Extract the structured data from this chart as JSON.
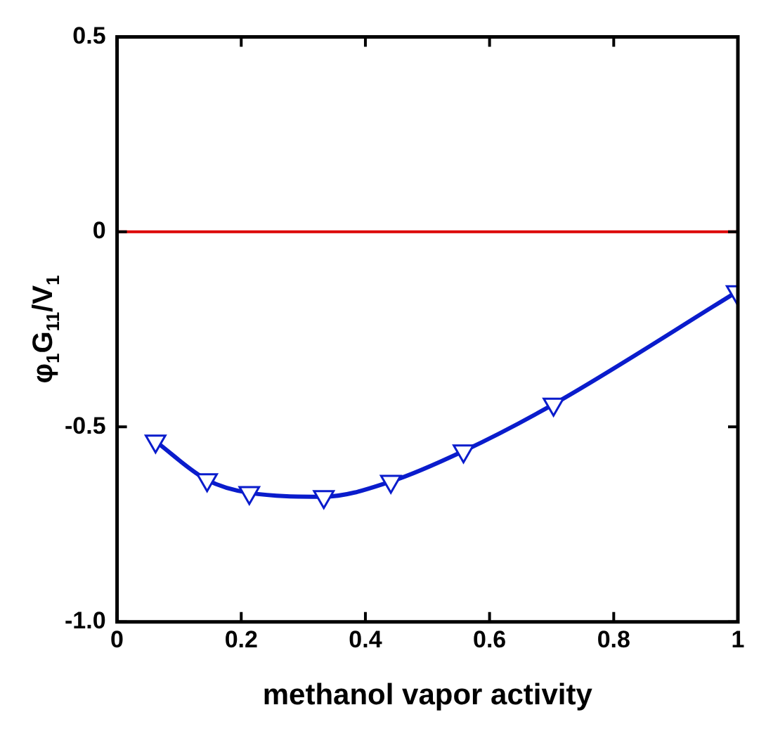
{
  "chart_data": {
    "type": "line",
    "xlabel": "methanol vapor activity",
    "ylabel": "φ$_{1}$G$_{11}$/V$_{1}$",
    "x": [
      0.062,
      0.145,
      0.213,
      0.333,
      0.441,
      0.558,
      0.703,
      0.998
    ],
    "series": [
      {
        "color": "#0a1ccc",
        "values": [
          -0.537,
          -0.636,
          -0.669,
          -0.679,
          -0.64,
          -0.562,
          -0.442,
          -0.154
        ]
      }
    ],
    "xlim": [
      0,
      1
    ],
    "xticks": [
      0,
      0.2,
      0.4,
      0.6,
      0.8,
      1
    ],
    "ylim": [
      -1,
      0.5
    ],
    "yticks": [
      {
        "value": -1,
        "label": "-1.0"
      },
      {
        "value": -0.5,
        "label": "-0.5"
      },
      0,
      0.5
    ],
    "ref_lines": [
      {
        "axis": "y",
        "value": 0,
        "color": "#dd0000"
      }
    ],
    "marker": "triangle",
    "line_style": "solid",
    "grid": false,
    "legend": false
  }
}
